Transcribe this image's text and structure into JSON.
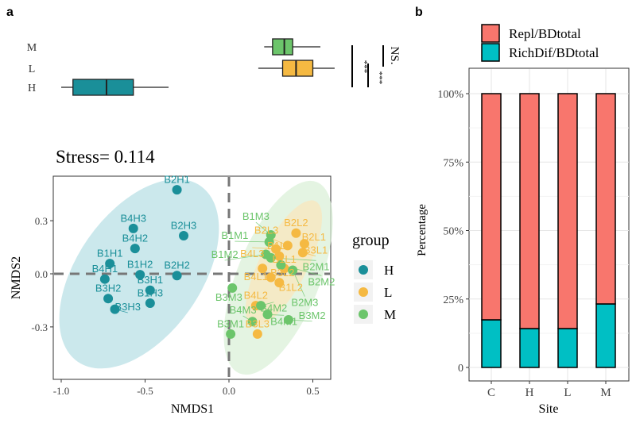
{
  "panel_labels": {
    "a": "a",
    "b": "b"
  },
  "chart_data": [
    {
      "type": "boxplot",
      "categories": [
        "M",
        "L",
        "H"
      ],
      "boxes": [
        {
          "group": "M",
          "min": 0.21,
          "q1": 0.26,
          "median": 0.33,
          "q3": 0.38,
          "max": 0.545,
          "color": "#6cc56b"
        },
        {
          "group": "L",
          "min": 0.175,
          "q1": 0.32,
          "median": 0.4,
          "q3": 0.5,
          "max": 0.63,
          "color": "#f5b942"
        },
        {
          "group": "H",
          "min": -1.0,
          "q1": -0.93,
          "median": -0.73,
          "q3": -0.57,
          "max": -0.36,
          "color": "#1a8f99"
        }
      ],
      "significance": [
        {
          "label": "***"
        },
        {
          "label": "***"
        },
        {
          "label": "NS."
        }
      ]
    },
    {
      "type": "scatter",
      "title": "Stress= 0.114",
      "xlabel": "NMDS1",
      "ylabel": "NMDS2",
      "xlim": [
        -1.05,
        0.6
      ],
      "ylim": [
        -0.41,
        0.55
      ],
      "xticks": [
        "-1.0",
        "-0.5",
        "0.0",
        "0.5"
      ],
      "xtick_values": [
        -1.0,
        -0.5,
        0.0,
        0.5
      ],
      "yticks": [
        "0.3",
        "0.0",
        "-0.3"
      ],
      "ytick_values": [
        0.3,
        0.0,
        -0.3
      ],
      "grid": false,
      "legend": {
        "title": "group",
        "position": "right",
        "entries": [
          "H",
          "L",
          "M"
        ]
      },
      "colors": {
        "H": "#1a8f99",
        "L": "#f5b942",
        "M": "#6cc56b"
      },
      "series": [
        {
          "name": "H",
          "points": [
            {
              "label": "B2H1",
              "x": -0.31,
              "y": 0.475
            },
            {
              "label": "B4H3",
              "x": -0.57,
              "y": 0.256
            },
            {
              "label": "B2H3",
              "x": -0.27,
              "y": 0.215
            },
            {
              "label": "B4H2",
              "x": -0.56,
              "y": 0.143
            },
            {
              "label": "B1H1",
              "x": -0.71,
              "y": 0.058
            },
            {
              "label": "B4H1",
              "x": -0.74,
              "y": -0.03
            },
            {
              "label": "B1H2",
              "x": -0.53,
              "y": -0.005
            },
            {
              "label": "B2H2",
              "x": -0.31,
              "y": -0.01
            },
            {
              "label": "B3H1",
              "x": -0.47,
              "y": -0.093
            },
            {
              "label": "B3H2",
              "x": -0.72,
              "y": -0.14
            },
            {
              "label": "B1H3",
              "x": -0.47,
              "y": -0.166
            },
            {
              "label": "B3H3",
              "x": -0.68,
              "y": -0.2
            }
          ]
        },
        {
          "name": "L",
          "points": [
            {
              "label": "B2L2",
              "x": 0.4,
              "y": 0.23
            },
            {
              "label": "B2L1",
              "x": 0.45,
              "y": 0.17
            },
            {
              "label": "B3L1",
              "x": 0.44,
              "y": 0.12
            },
            {
              "label": "B1L3",
              "x": 0.3,
              "y": 0.1
            },
            {
              "label": "B1L1",
              "x": 0.33,
              "y": 0.03
            },
            {
              "label": "B3L2",
              "x": 0.25,
              "y": -0.02
            },
            {
              "label": "B1L2",
              "x": 0.3,
              "y": -0.05
            },
            {
              "label": "B4L2",
              "x": 0.16,
              "y": -0.18
            },
            {
              "label": "B3L3",
              "x": 0.17,
              "y": -0.34
            },
            {
              "label": "B4L3",
              "x": 0.28,
              "y": 0.14
            },
            {
              "label": "B2L3",
              "x": 0.35,
              "y": 0.16
            },
            {
              "label": "B4L1",
              "x": 0.2,
              "y": 0.03
            }
          ]
        },
        {
          "name": "M",
          "points": [
            {
              "label": "B1M3",
              "x": 0.25,
              "y": 0.22
            },
            {
              "label": "B1M1",
              "x": 0.24,
              "y": 0.18
            },
            {
              "label": "B1M2",
              "x": 0.22,
              "y": 0.11
            },
            {
              "label": "B2M1",
              "x": 0.25,
              "y": 0.09
            },
            {
              "label": "B2M2",
              "x": 0.31,
              "y": 0.05
            },
            {
              "label": "B2M3",
              "x": 0.38,
              "y": 0.02
            },
            {
              "label": "B3M3",
              "x": 0.02,
              "y": -0.08
            },
            {
              "label": "B4M2",
              "x": 0.19,
              "y": -0.18
            },
            {
              "label": "B4M1",
              "x": 0.23,
              "y": -0.23
            },
            {
              "label": "B3M2",
              "x": 0.355,
              "y": -0.26
            },
            {
              "label": "B4M3",
              "x": 0.14,
              "y": -0.27
            },
            {
              "label": "B3M1",
              "x": 0.01,
              "y": -0.34
            }
          ]
        }
      ]
    },
    {
      "type": "stacked_bar",
      "xlabel": "Site",
      "ylabel": "Percentage",
      "categories": [
        "C",
        "H",
        "L",
        "M"
      ],
      "yticks": [
        "0",
        "25%",
        "50%",
        "75%",
        "100%"
      ],
      "ylim": [
        0,
        1
      ],
      "legend": {
        "position": "top"
      },
      "series": [
        {
          "name": "RichDif/BDtotal",
          "color": "#00bfc4",
          "values": [
            0.174,
            0.142,
            0.142,
            0.232
          ]
        },
        {
          "name": "Repl/BDtotal",
          "color": "#f8766d",
          "values": [
            0.826,
            0.858,
            0.858,
            0.768
          ]
        }
      ]
    }
  ]
}
